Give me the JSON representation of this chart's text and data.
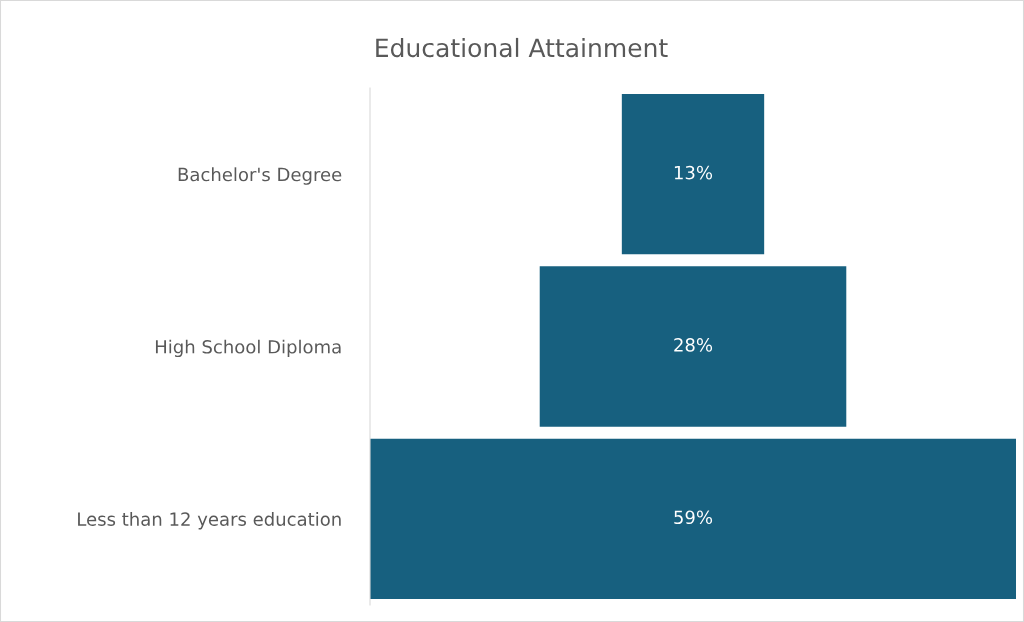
{
  "chart_data": {
    "type": "other",
    "title": "Educational Attainment",
    "categories": [
      "Bachelor's Degree",
      "High School Diploma",
      "Less than 12 years education"
    ],
    "values": [
      13,
      28,
      59
    ],
    "value_labels": [
      "13%",
      "28%",
      "59%"
    ],
    "color": "#17607f"
  }
}
